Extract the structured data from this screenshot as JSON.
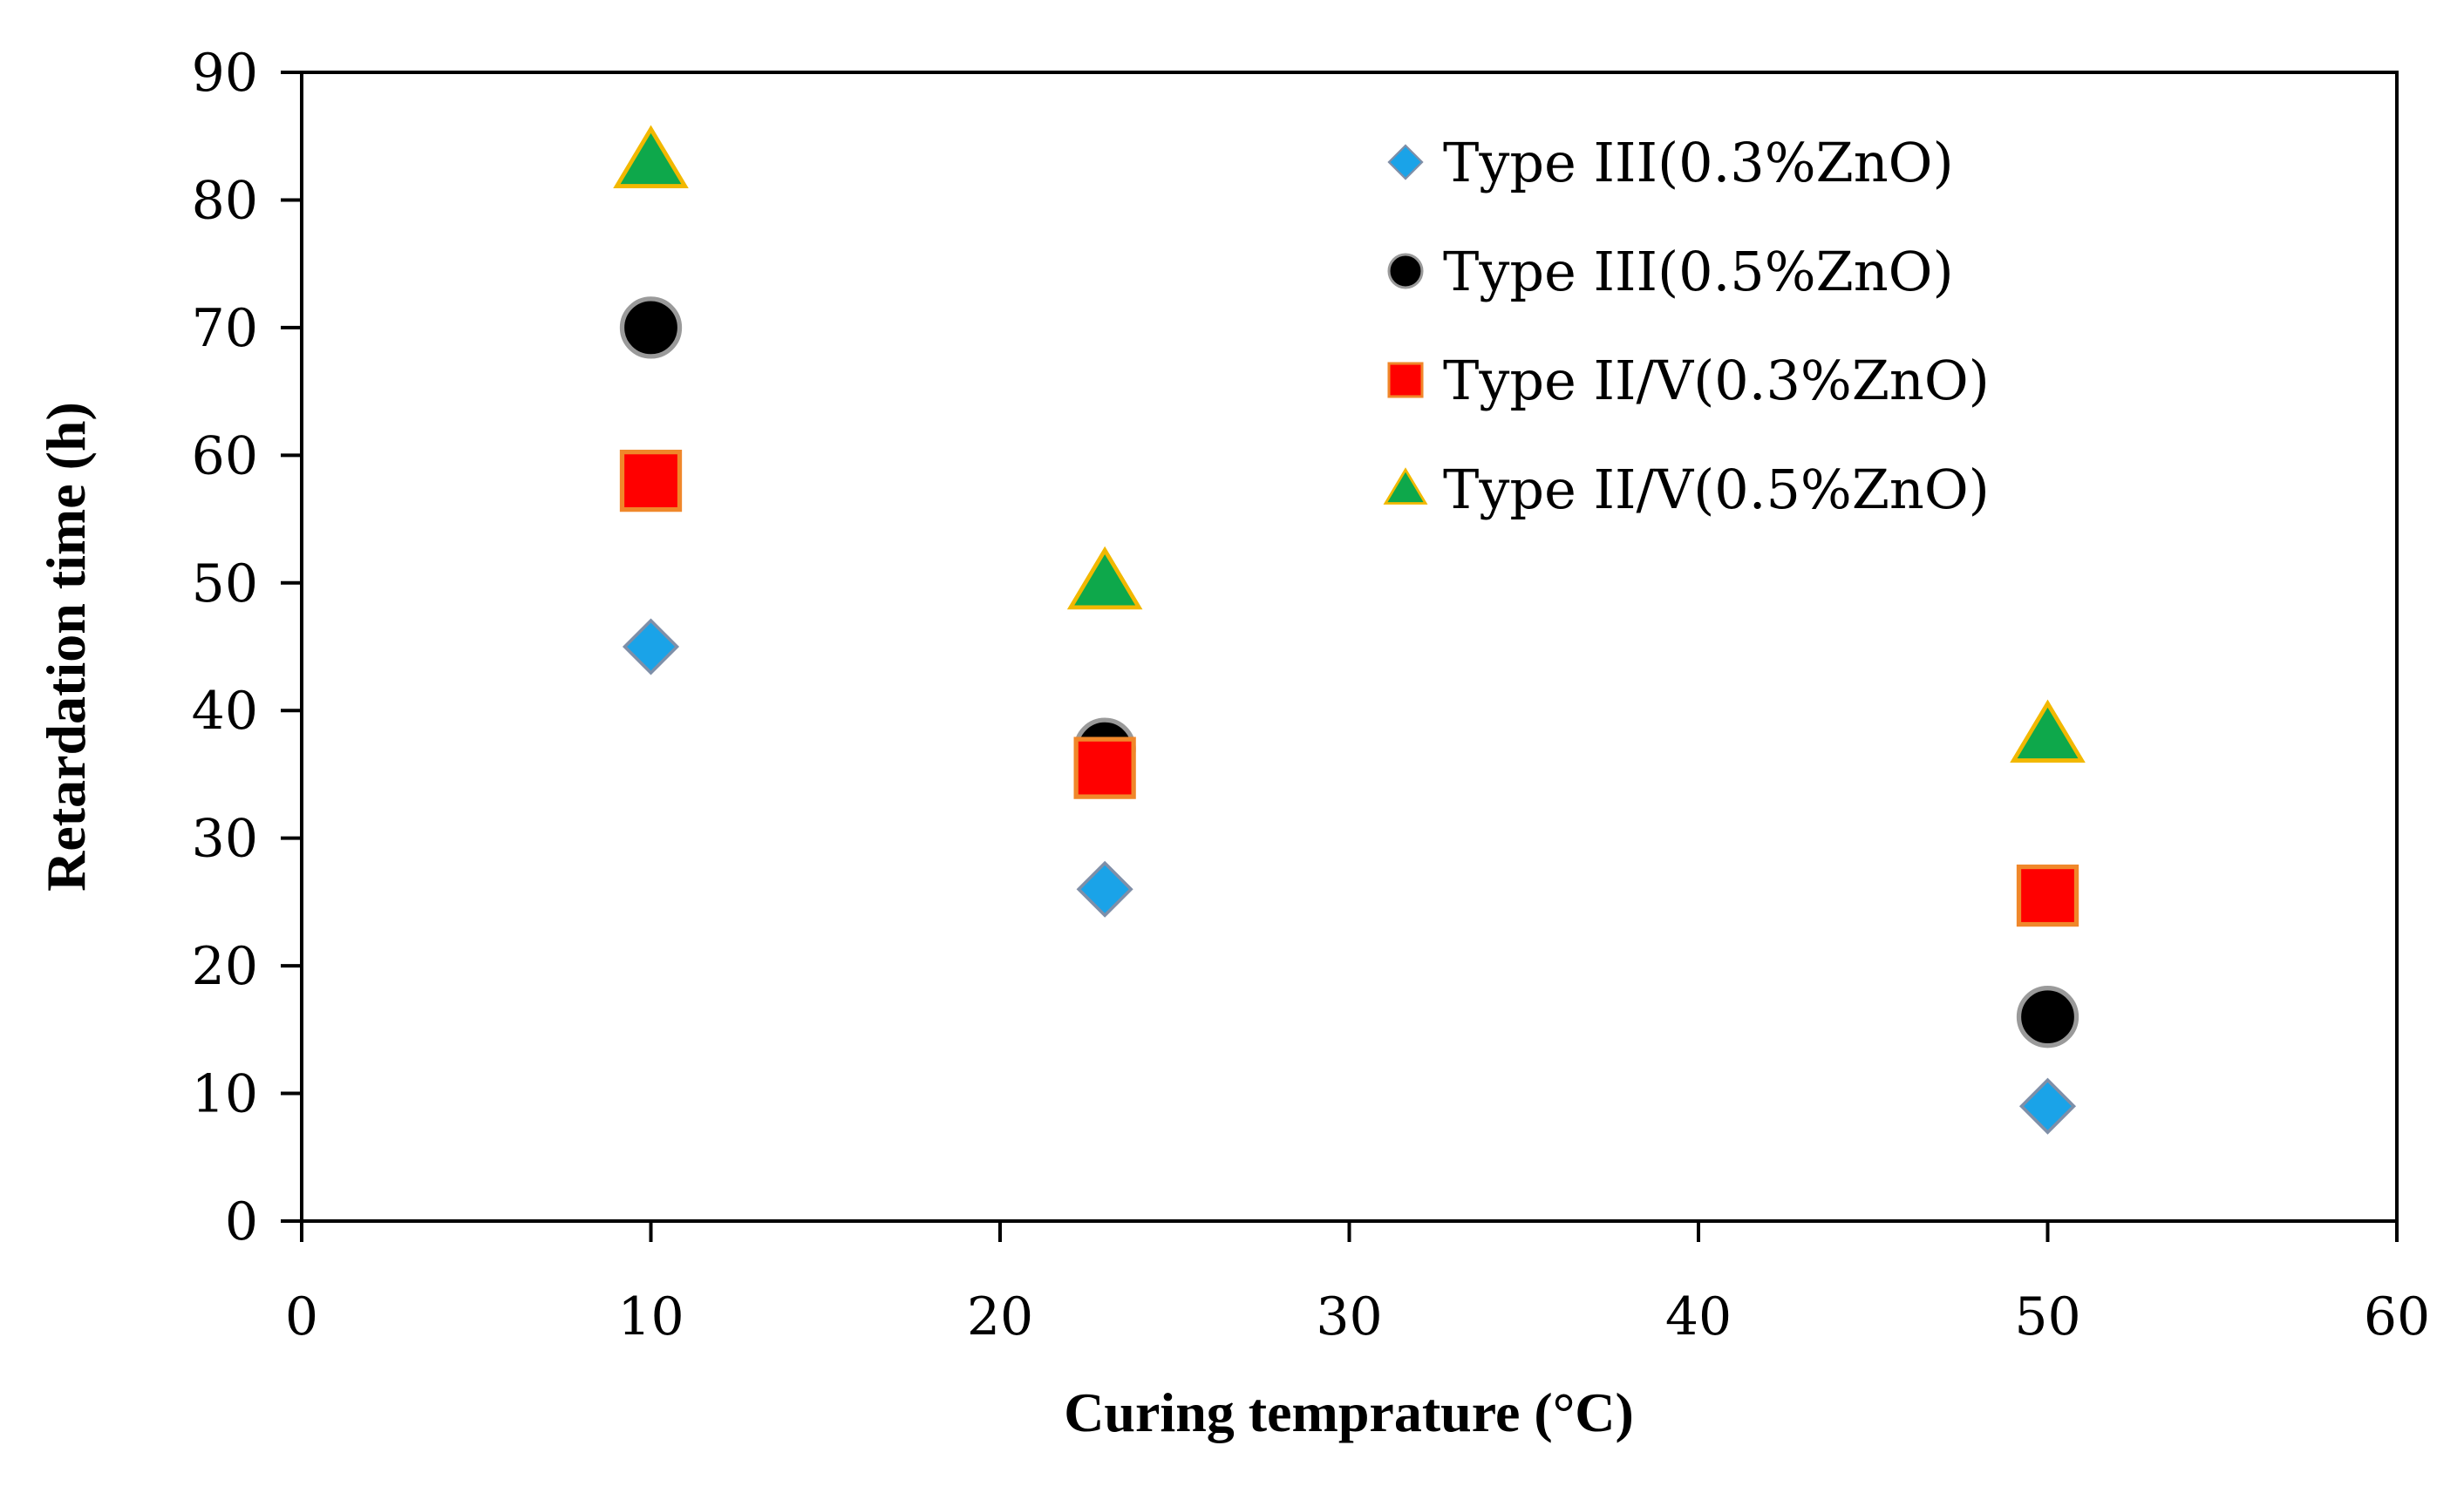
{
  "chart_data": {
    "type": "scatter",
    "title": "",
    "xlabel": "Curing temprature (°C)",
    "ylabel": "Retardation time (h)",
    "xlim": [
      0,
      60
    ],
    "ylim": [
      0,
      90
    ],
    "xticks": [
      0,
      10,
      20,
      30,
      40,
      50,
      60
    ],
    "yticks": [
      0,
      10,
      20,
      30,
      40,
      50,
      60,
      70,
      80,
      90
    ],
    "grid": false,
    "legend_position": "top-right",
    "series": [
      {
        "name": "Type III(0.3%ZnO)",
        "marker": "diamond",
        "color": "#1aa3e8",
        "edge_color": "#7f8fa8",
        "points": [
          {
            "x": 10,
            "y": 45
          },
          {
            "x": 23,
            "y": 26
          },
          {
            "x": 50,
            "y": 9
          }
        ]
      },
      {
        "name": "Type III(0.5%ZnO)",
        "marker": "circle",
        "color": "#000000",
        "edge_color": "#9a9a9a",
        "points": [
          {
            "x": 10,
            "y": 70
          },
          {
            "x": 23,
            "y": 37
          },
          {
            "x": 50,
            "y": 16
          }
        ]
      },
      {
        "name": "Type II/V(0.3%ZnO)",
        "marker": "square",
        "color": "#ff0000",
        "edge_color": "#f0872a",
        "points": [
          {
            "x": 10,
            "y": 58
          },
          {
            "x": 23,
            "y": 35.5
          },
          {
            "x": 50,
            "y": 25.5
          }
        ]
      },
      {
        "name": "Type II/V(0.5%ZnO)",
        "marker": "triangle",
        "color": "#0ea84b",
        "edge_color": "#f2b800",
        "points": [
          {
            "x": 10,
            "y": 83
          },
          {
            "x": 23,
            "y": 50
          },
          {
            "x": 50,
            "y": 38
          }
        ]
      }
    ]
  }
}
